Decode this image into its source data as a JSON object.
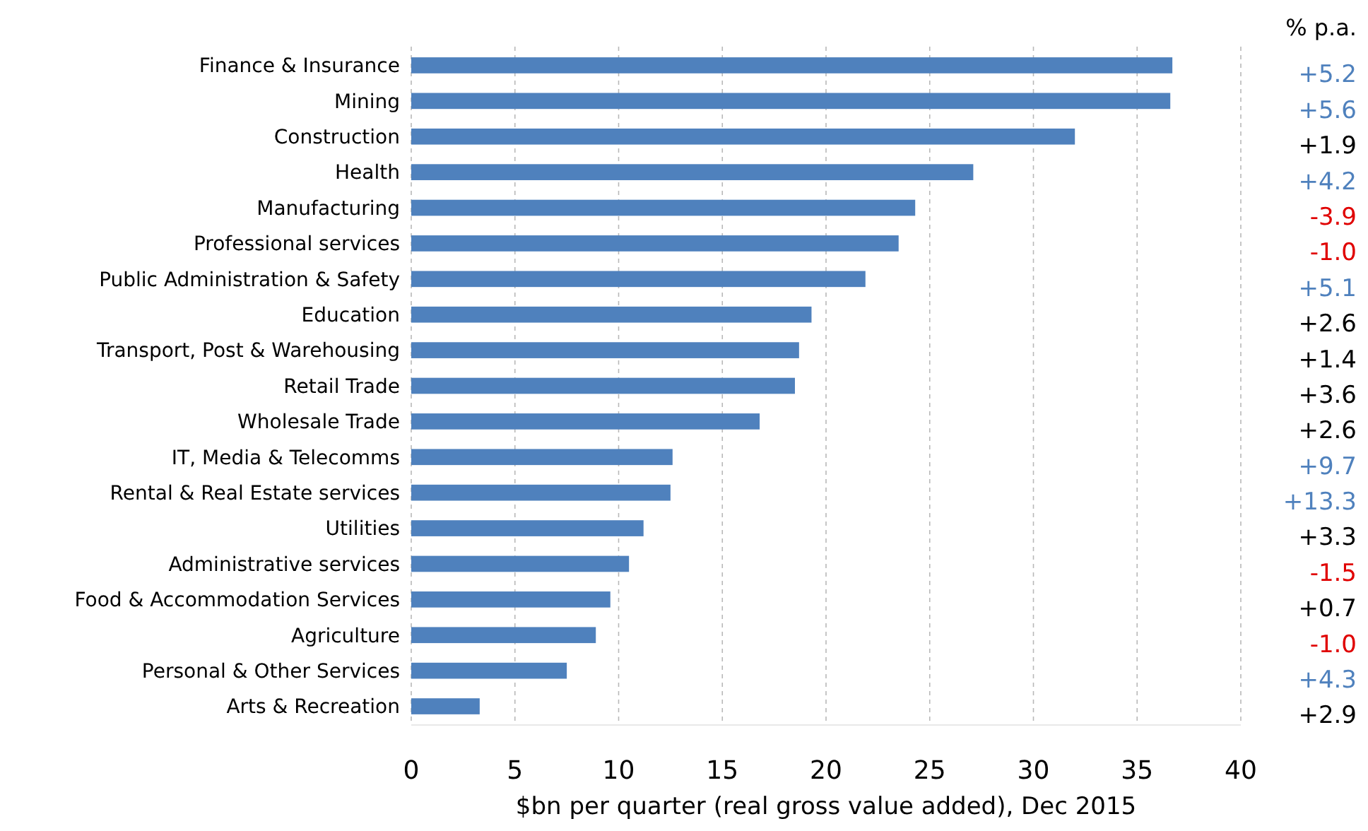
{
  "chart_data": {
    "type": "bar",
    "orientation": "horizontal",
    "xlabel": "$bn per quarter (real gross value added), Dec 2015",
    "categories": [
      "Finance & Insurance",
      "Mining",
      "Construction",
      "Health",
      "Manufacturing",
      "Professional services",
      "Public Administration & Safety",
      "Education",
      "Transport, Post & Warehousing",
      "Retail Trade",
      "Wholesale Trade",
      "IT, Media & Telecomms",
      "Rental & Real Estate services",
      "Utilities",
      "Administrative services",
      "Food & Accommodation Services",
      "Agriculture",
      "Personal & Other Services",
      "Arts & Recreation"
    ],
    "values": [
      36.7,
      36.6,
      32.0,
      27.1,
      24.3,
      23.5,
      21.9,
      19.3,
      18.7,
      18.5,
      16.8,
      12.6,
      12.5,
      11.2,
      10.5,
      9.6,
      8.9,
      7.5,
      3.3
    ],
    "color": "#4f81bd",
    "xlim": [
      0,
      40
    ],
    "xticks": [
      0,
      5,
      10,
      15,
      20,
      25,
      30,
      35,
      40
    ],
    "grid": "x",
    "annotations": [
      "% p.a.",
      "+5.2",
      "+5.6",
      "+1.9",
      "+4.2",
      "-3.9",
      "-1.0",
      "+5.1",
      "+2.6",
      "+1.4",
      "+3.6",
      "+2.6",
      "+9.7",
      "+13.3",
      "+3.3",
      "-1.5",
      "+0.7",
      "-1.0",
      "+4.3",
      "+2.9"
    ]
  }
}
